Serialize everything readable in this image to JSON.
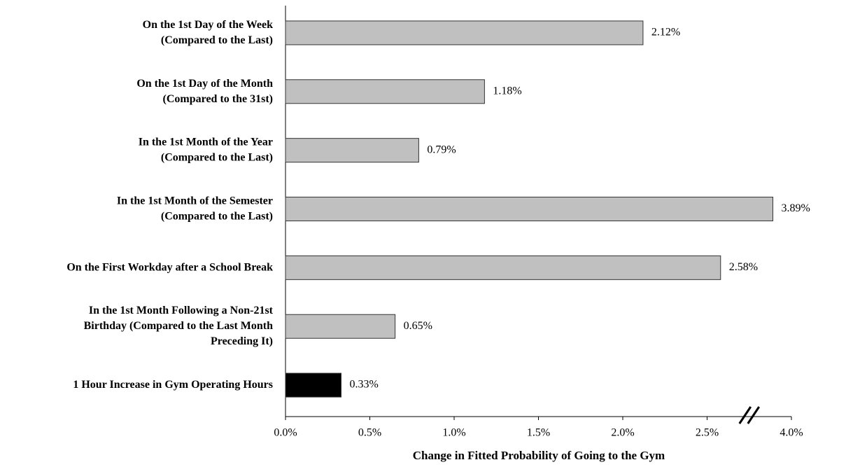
{
  "chart_data": {
    "type": "barh",
    "x_label": "Change in Fitted Probability of Going to the Gym",
    "categories": [
      [
        "On the 1st Day of the Week",
        "(Compared to the Last)"
      ],
      [
        "On the 1st Day of the Month",
        "(Compared to the 31st)"
      ],
      [
        "In the 1st Month of the Year",
        "(Compared to the Last)"
      ],
      [
        "In the 1st Month of the Semester",
        "(Compared to the Last)"
      ],
      [
        "On the First Workday after a School Break"
      ],
      [
        "In the 1st Month Following a Non-21st",
        "Birthday (Compared to the Last Month",
        "Preceding It)"
      ],
      [
        "1 Hour Increase in Gym Operating Hours"
      ]
    ],
    "values": [
      2.12,
      1.18,
      0.79,
      3.89,
      2.58,
      0.65,
      0.33
    ],
    "value_labels": [
      "2.12%",
      "1.18%",
      "0.79%",
      "3.89%",
      "2.58%",
      "0.65%",
      "0.33%"
    ],
    "colors": [
      "#c0c0c0",
      "#c0c0c0",
      "#c0c0c0",
      "#c0c0c0",
      "#c0c0c0",
      "#c0c0c0",
      "#000000"
    ],
    "xlim": [
      0,
      4
    ],
    "axis_break": [
      2.75,
      3.75
    ],
    "xticks": [
      {
        "value": 0,
        "label": "0.0%"
      },
      {
        "value": 0.5,
        "label": "0.5%"
      },
      {
        "value": 1,
        "label": "1.0%"
      },
      {
        "value": 1.5,
        "label": "1.5%"
      },
      {
        "value": 2,
        "label": "2.0%"
      },
      {
        "value": 2.5,
        "label": "2.5%"
      },
      {
        "value": 4,
        "label": "4.0%"
      }
    ]
  }
}
